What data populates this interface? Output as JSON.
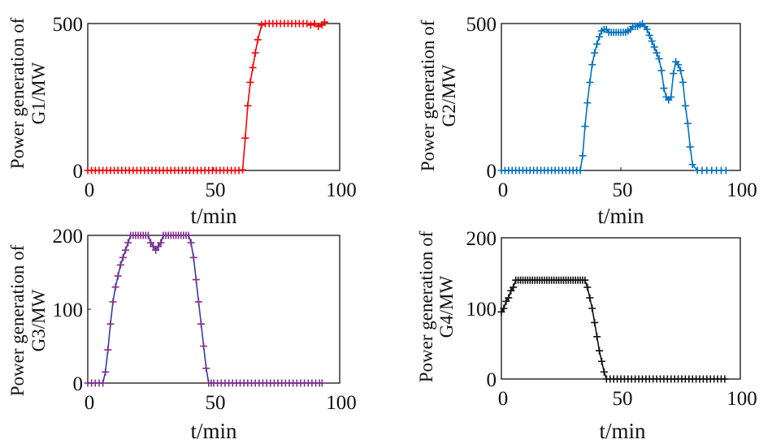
{
  "chart_data": [
    {
      "type": "line",
      "ylabel_lines": [
        "Power generation of",
        "G1/MW"
      ],
      "xlabel": "t/min",
      "xlim": [
        0,
        100
      ],
      "ylim": [
        0,
        500
      ],
      "xticks": [
        0,
        50,
        100
      ],
      "yticks": [
        0,
        500
      ],
      "line_color": "#ff0000",
      "marker_color": "#ff0000",
      "marker": "+",
      "series": [
        {
          "x": [
            0,
            1.5,
            3,
            4.5,
            6,
            7.5,
            9,
            10.5,
            12,
            13.5,
            15,
            16.5,
            18,
            19.5,
            21,
            22.5,
            24,
            25.5,
            27,
            28.5,
            30,
            31.5,
            33,
            34.5,
            36,
            37.5,
            39,
            40.5,
            42,
            43.5,
            45,
            46.5,
            48,
            49.5,
            51,
            52.5,
            54,
            55.5,
            57,
            58.5,
            60,
            61.5,
            62.5,
            63.5,
            64.5,
            65.5,
            66.5,
            67.5,
            69,
            70.5,
            72,
            73.5,
            75,
            76.5,
            78,
            79.5,
            81,
            82.5,
            84,
            85.5,
            87,
            88.5,
            90,
            91.5,
            93,
            94
          ],
          "y": [
            0,
            0,
            0,
            0,
            0,
            0,
            0,
            0,
            0,
            0,
            0,
            0,
            0,
            0,
            0,
            0,
            0,
            0,
            0,
            0,
            0,
            0,
            0,
            0,
            0,
            0,
            0,
            0,
            0,
            0,
            0,
            0,
            0,
            0,
            0,
            0,
            0,
            0,
            0,
            0,
            0,
            2,
            110,
            220,
            300,
            350,
            400,
            445,
            495,
            500,
            500,
            500,
            500,
            500,
            500,
            500,
            500,
            500,
            500,
            500,
            500,
            495,
            500,
            490,
            495,
            505
          ]
        }
      ]
    },
    {
      "type": "line",
      "ylabel_lines": [
        "Power generation of",
        "G2/MW"
      ],
      "xlabel": "t/min",
      "xlim": [
        0,
        100
      ],
      "ylim": [
        0,
        500
      ],
      "xticks": [
        0,
        50,
        100
      ],
      "yticks": [
        0,
        500
      ],
      "line_color": "#0072bd",
      "marker_color": "#0072bd",
      "marker": "+",
      "series": [
        {
          "x": [
            0,
            1.5,
            3,
            4.5,
            6,
            7.5,
            9,
            10.5,
            12,
            13.5,
            15,
            16.5,
            18,
            19.5,
            21,
            22.5,
            24,
            25.5,
            27,
            28.5,
            30,
            31.5,
            33,
            34,
            35,
            36,
            37,
            38,
            39,
            40,
            41,
            42,
            43,
            44,
            45,
            46,
            47,
            48,
            49,
            50,
            51,
            52,
            53,
            54,
            55,
            56,
            57,
            58,
            59,
            60,
            61,
            62,
            63,
            64,
            65,
            66,
            67,
            68,
            69,
            70,
            71,
            72,
            73,
            74,
            75,
            76,
            77,
            78,
            79,
            80,
            82,
            84,
            86,
            88,
            90,
            92,
            94
          ],
          "y": [
            0,
            0,
            0,
            0,
            0,
            0,
            0,
            0,
            0,
            0,
            0,
            0,
            0,
            0,
            0,
            0,
            0,
            0,
            0,
            0,
            0,
            0,
            0,
            50,
            150,
            230,
            300,
            360,
            400,
            430,
            455,
            475,
            480,
            480,
            470,
            470,
            470,
            470,
            470,
            470,
            470,
            470,
            475,
            480,
            490,
            490,
            490,
            495,
            500,
            490,
            480,
            460,
            440,
            420,
            400,
            380,
            340,
            280,
            250,
            240,
            250,
            330,
            370,
            360,
            340,
            300,
            220,
            160,
            80,
            20,
            0,
            0,
            0,
            0,
            0,
            0,
            0
          ]
        }
      ]
    },
    {
      "type": "line",
      "ylabel_lines": [
        "Power generation of",
        "G3/MW"
      ],
      "xlabel": "t/min",
      "xlim": [
        0,
        100
      ],
      "ylim": [
        0,
        200
      ],
      "xticks": [
        0,
        50,
        100
      ],
      "yticks": [
        0,
        100,
        200
      ],
      "line_color": "#2e3fa5",
      "marker_color": "#7e2f8e",
      "marker": "+",
      "series": [
        {
          "x": [
            0,
            1.5,
            3,
            4.5,
            6,
            7,
            8,
            9,
            10,
            11,
            12,
            13,
            14,
            15,
            16,
            17,
            18,
            19,
            20,
            21,
            22,
            23,
            24,
            25,
            26,
            27,
            28,
            29,
            30,
            31,
            32,
            33,
            34,
            35,
            36,
            37,
            38,
            39,
            40,
            41,
            42,
            43,
            44,
            45,
            46,
            47,
            48,
            49,
            50,
            51.5,
            53,
            54.5,
            56,
            57.5,
            59,
            60.5,
            62,
            63.5,
            65,
            66.5,
            68,
            69.5,
            71,
            72.5,
            74,
            75.5,
            77,
            78.5,
            80,
            81.5,
            83,
            84.5,
            86,
            87.5,
            89,
            90.5,
            92,
            93
          ],
          "y": [
            0,
            0,
            0,
            0,
            0,
            15,
            45,
            80,
            110,
            130,
            145,
            160,
            170,
            180,
            190,
            200,
            200,
            200,
            200,
            200,
            200,
            200,
            200,
            190,
            185,
            180,
            185,
            190,
            200,
            200,
            200,
            200,
            200,
            200,
            200,
            200,
            200,
            200,
            200,
            190,
            170,
            140,
            110,
            80,
            50,
            20,
            0,
            0,
            0,
            0,
            0,
            0,
            0,
            0,
            0,
            0,
            0,
            0,
            0,
            0,
            0,
            0,
            0,
            0,
            0,
            0,
            0,
            0,
            0,
            0,
            0,
            0,
            0,
            0,
            0,
            0,
            0,
            0
          ]
        }
      ]
    },
    {
      "type": "line",
      "ylabel_lines": [
        "Power generation of",
        "G4/MW"
      ],
      "xlabel": "t/min",
      "xlim": [
        0,
        100
      ],
      "ylim": [
        0,
        200
      ],
      "xticks": [
        0,
        50,
        100
      ],
      "yticks": [
        0,
        100,
        200
      ],
      "line_color": "#111111",
      "marker_color": "#111111",
      "marker": "+",
      "series": [
        {
          "x": [
            0,
            1,
            2,
            3,
            4,
            5,
            6,
            7,
            8,
            9,
            10,
            11,
            12,
            13,
            14,
            15,
            16,
            17,
            18,
            19,
            20,
            21,
            22,
            23,
            24,
            25,
            26,
            27,
            28,
            29,
            30,
            31,
            32,
            33,
            34,
            35,
            36,
            37,
            38,
            39,
            40,
            41,
            42,
            43,
            44,
            45.5,
            47,
            48.5,
            50,
            51.5,
            53,
            54.5,
            56,
            57.5,
            59,
            60.5,
            62,
            63.5,
            65,
            66.5,
            68,
            69.5,
            71,
            72.5,
            74,
            75.5,
            77,
            78.5,
            80,
            81.5,
            83,
            84.5,
            86,
            87.5,
            89,
            90.5,
            92,
            93.5
          ],
          "y": [
            95,
            100,
            110,
            115,
            125,
            130,
            140,
            140,
            140,
            140,
            140,
            140,
            140,
            140,
            140,
            140,
            140,
            140,
            140,
            140,
            140,
            140,
            140,
            140,
            140,
            140,
            140,
            140,
            140,
            140,
            140,
            140,
            140,
            140,
            140,
            140,
            130,
            115,
            100,
            80,
            60,
            40,
            25,
            10,
            0,
            0,
            0,
            0,
            0,
            0,
            0,
            0,
            0,
            0,
            0,
            0,
            0,
            0,
            0,
            0,
            0,
            0,
            0,
            0,
            0,
            0,
            0,
            0,
            0,
            0,
            0,
            0,
            0,
            0,
            0,
            0,
            0,
            0
          ]
        }
      ]
    }
  ]
}
